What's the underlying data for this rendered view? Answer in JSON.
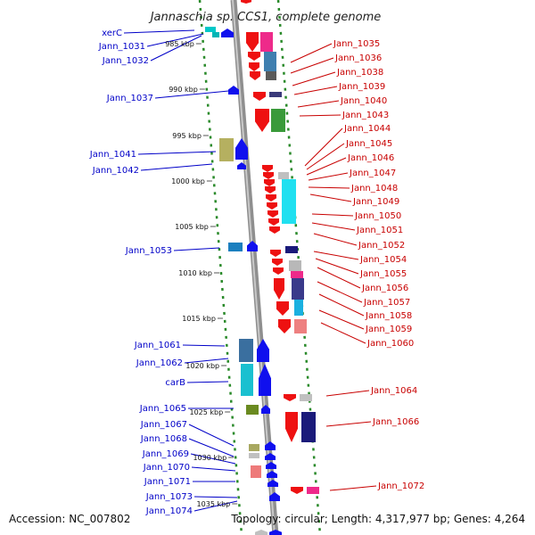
{
  "title": "Jannaschia sp. CCS1, complete genome",
  "footer": {
    "accession": "Accession: NC_007802",
    "topology": "Topology: circular; Length: 4,317,977 bp; Genes: 4,264"
  },
  "scale_labels": [
    "985 kbp",
    "990 kbp",
    "995 kbp",
    "1000 kbp",
    "1005 kbp",
    "1010 kbp",
    "1015 kbp",
    "1020 kbp",
    "1025 kbp",
    "1030 kbp",
    "1035 kbp"
  ],
  "left_labels": [
    "xerC",
    "Jann_1031",
    "Jann_1032",
    "Jann_1037",
    "Jann_1041",
    "Jann_1042",
    "Jann_1053",
    "Jann_1061",
    "Jann_1062",
    "carB",
    "Jann_1065",
    "Jann_1067",
    "Jann_1068",
    "Jann_1069",
    "Jann_1070",
    "Jann_1071",
    "Jann_1073",
    "Jann_1074"
  ],
  "right_labels": [
    "Jann_1035",
    "Jann_1036",
    "Jann_1038",
    "Jann_1039",
    "Jann_1040",
    "Jann_1043",
    "Jann_1044",
    "Jann_1045",
    "Jann_1046",
    "Jann_1047",
    "Jann_1048",
    "Jann_1049",
    "Jann_1050",
    "Jann_1051",
    "Jann_1052",
    "Jann_1054",
    "Jann_1055",
    "Jann_1056",
    "Jann_1057",
    "Jann_1058",
    "Jann_1059",
    "Jann_1060",
    "Jann_1064",
    "Jann_1066",
    "Jann_1072"
  ],
  "colors": {
    "backbone": "#9a9a9a",
    "forward_strand": "#0000ee",
    "reverse_strand": "#ee0000",
    "guide_dots": "#2a8a2a",
    "left_label": "#0000c8",
    "right_label": "#c80000"
  }
}
